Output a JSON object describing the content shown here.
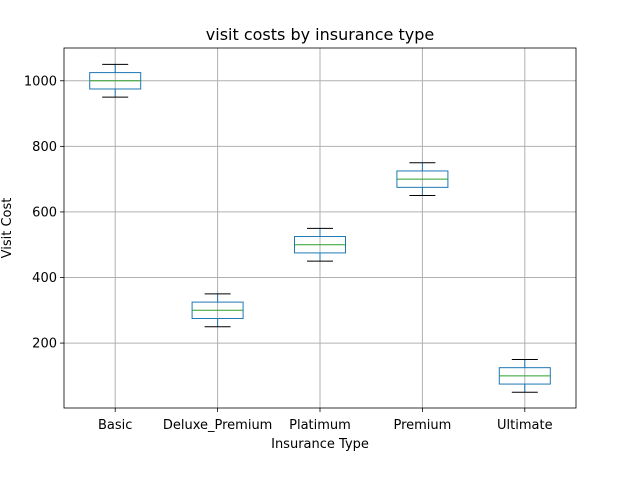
{
  "chart_data": {
    "type": "box",
    "title": "visit costs by insurance type",
    "xlabel": "Insurance Type",
    "ylabel": "Visit Cost",
    "categories": [
      "Basic",
      "Deluxe_Premium",
      "Platimum",
      "Premium",
      "Ultimate"
    ],
    "boxes": [
      {
        "category": "Basic",
        "whisker_low": 950,
        "q1": 975,
        "median": 1000,
        "q3": 1025,
        "whisker_high": 1050
      },
      {
        "category": "Deluxe_Premium",
        "whisker_low": 250,
        "q1": 275,
        "median": 300,
        "q3": 325,
        "whisker_high": 350
      },
      {
        "category": "Platimum",
        "whisker_low": 450,
        "q1": 475,
        "median": 500,
        "q3": 525,
        "whisker_high": 550
      },
      {
        "category": "Premium",
        "whisker_low": 650,
        "q1": 675,
        "median": 700,
        "q3": 725,
        "whisker_high": 750
      },
      {
        "category": "Ultimate",
        "whisker_low": 50,
        "q1": 75,
        "median": 100,
        "q3": 125,
        "whisker_high": 150
      }
    ],
    "ylim": [
      2,
      1100
    ],
    "yticks": [
      200,
      400,
      600,
      800,
      1000
    ],
    "grid": true,
    "colors": {
      "box": "#1f77b4",
      "median": "#2ca02c",
      "whisker": "#000000",
      "grid": "#b0b0b0"
    }
  }
}
